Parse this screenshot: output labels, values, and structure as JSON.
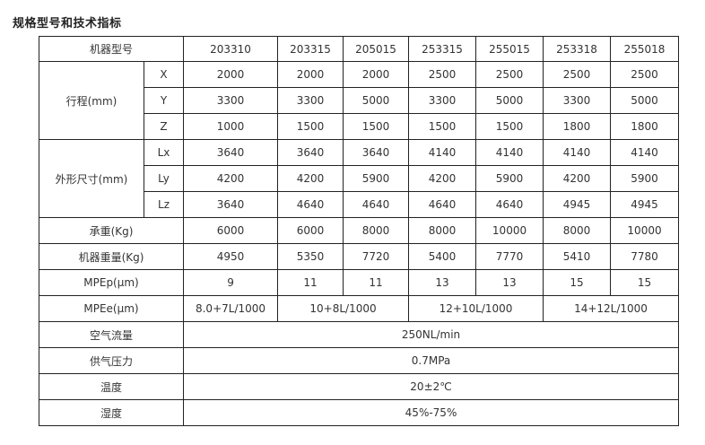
{
  "title": "规格型号和技术指标",
  "header": {
    "label": "机器型号",
    "models": [
      "203310",
      "203315",
      "205015",
      "253315",
      "255015",
      "253318",
      "255018"
    ]
  },
  "travel": {
    "label": "行程(mm)",
    "rows": [
      {
        "axis": "X",
        "values": [
          "2000",
          "2000",
          "2000",
          "2500",
          "2500",
          "2500",
          "2500"
        ]
      },
      {
        "axis": "Y",
        "values": [
          "3300",
          "3300",
          "5000",
          "3300",
          "5000",
          "3300",
          "5000"
        ]
      },
      {
        "axis": "Z",
        "values": [
          "1000",
          "1500",
          "1500",
          "1500",
          "1500",
          "1800",
          "1800"
        ]
      }
    ]
  },
  "dimensions": {
    "label": "外形尺寸(mm)",
    "rows": [
      {
        "axis": "Lx",
        "values": [
          "3640",
          "3640",
          "3640",
          "4140",
          "4140",
          "4140",
          "4140"
        ]
      },
      {
        "axis": "Ly",
        "values": [
          "4200",
          "4200",
          "5900",
          "4200",
          "5900",
          "4200",
          "5900"
        ]
      },
      {
        "axis": "Lz",
        "values": [
          "3640",
          "4640",
          "4640",
          "4640",
          "4640",
          "4945",
          "4945"
        ]
      }
    ]
  },
  "load": {
    "label": "承重(Kg)",
    "values": [
      "6000",
      "6000",
      "8000",
      "8000",
      "10000",
      "8000",
      "10000"
    ]
  },
  "weight": {
    "label": "机器重量(Kg)",
    "values": [
      "4950",
      "5350",
      "7720",
      "5400",
      "7770",
      "5410",
      "7780"
    ]
  },
  "mpep": {
    "label": "MPEp(μm)",
    "values": [
      "9",
      "11",
      "11",
      "13",
      "13",
      "15",
      "15"
    ]
  },
  "mpee": {
    "label": "MPEe(μm)",
    "values": [
      "8.0+7L/1000",
      "10+8L/1000",
      "12+10L/1000",
      "14+12L/1000"
    ]
  },
  "air_flow": {
    "label": "空气流量",
    "value": "250NL/min"
  },
  "air_pressure": {
    "label": "供气压力",
    "value": "0.7MPa"
  },
  "temperature": {
    "label": "温度",
    "value": "20±2℃"
  },
  "humidity": {
    "label": "湿度",
    "value": "45%-75%"
  }
}
